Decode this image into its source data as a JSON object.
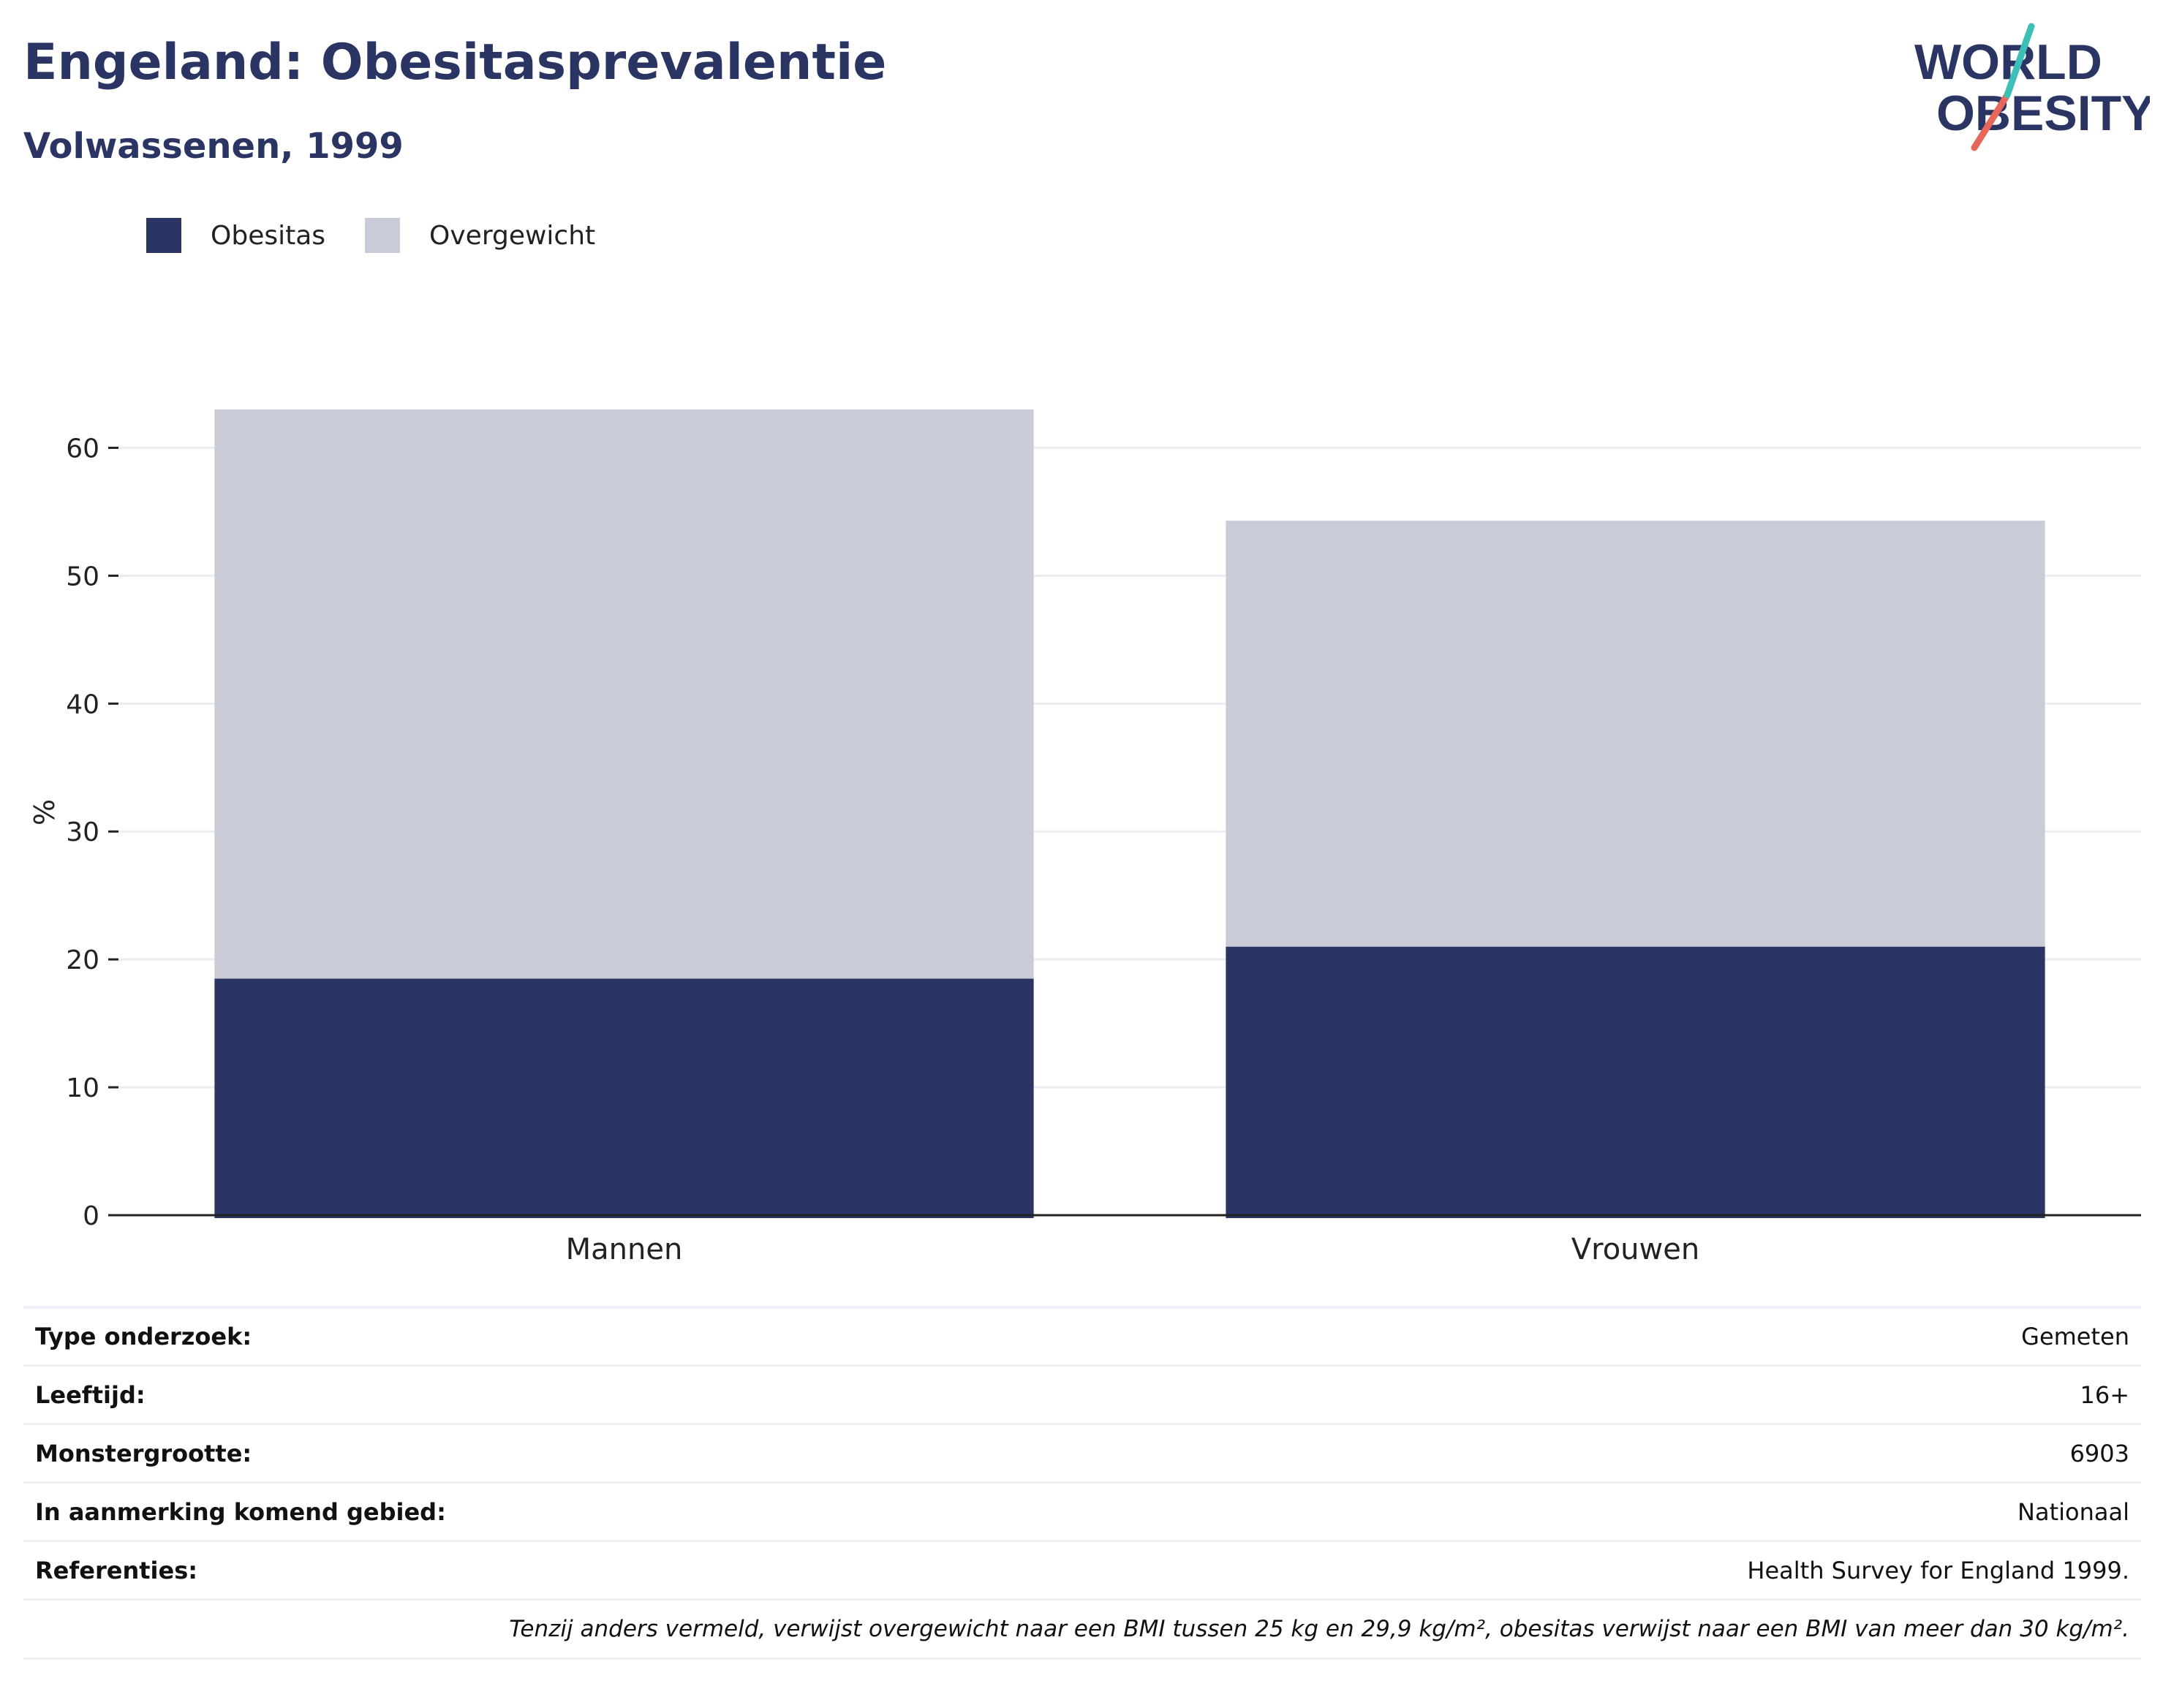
{
  "header": {
    "title": "Engeland: Obesitasprevalentie",
    "subtitle": "Volwassenen, 1999"
  },
  "logo": {
    "line1": "WORLD",
    "line2": "OBESITY",
    "colors": {
      "text": "#2a3563",
      "teal": "#3bbfb7",
      "coral": "#e8675b"
    }
  },
  "legend": [
    {
      "label": "Obesitas",
      "color": "#2a3563"
    },
    {
      "label": "Overgewicht",
      "color": "#c9ccd7"
    }
  ],
  "chart_data": {
    "type": "bar",
    "stacked": true,
    "categories": [
      "Mannen",
      "Vrouwen"
    ],
    "series": [
      {
        "name": "Obesitas",
        "color": "#2a3563",
        "values": [
          18.5,
          21
        ]
      },
      {
        "name": "Overgewicht",
        "color": "#c9ccd7",
        "values": [
          44.5,
          33.3
        ]
      }
    ],
    "ylabel": "%",
    "ylim": [
      0,
      63
    ],
    "yticks": [
      0,
      10,
      20,
      30,
      40,
      50,
      60
    ],
    "grid": true,
    "legend_position": "top-left"
  },
  "info": {
    "rows": [
      {
        "label": "Type onderzoek:",
        "value": "Gemeten"
      },
      {
        "label": "Leeftijd:",
        "value": "16+"
      },
      {
        "label": "Monstergrootte:",
        "value": "6903"
      },
      {
        "label": "In aanmerking komend gebied:",
        "value": "Nationaal"
      },
      {
        "label": "Referenties:",
        "value": "Health Survey for England 1999."
      }
    ],
    "footnote": "Tenzij anders vermeld, verwijst overgewicht naar een BMI tussen 25 kg en 29,9 kg/m², obesitas verwijst naar een BMI van meer dan 30 kg/m²."
  }
}
